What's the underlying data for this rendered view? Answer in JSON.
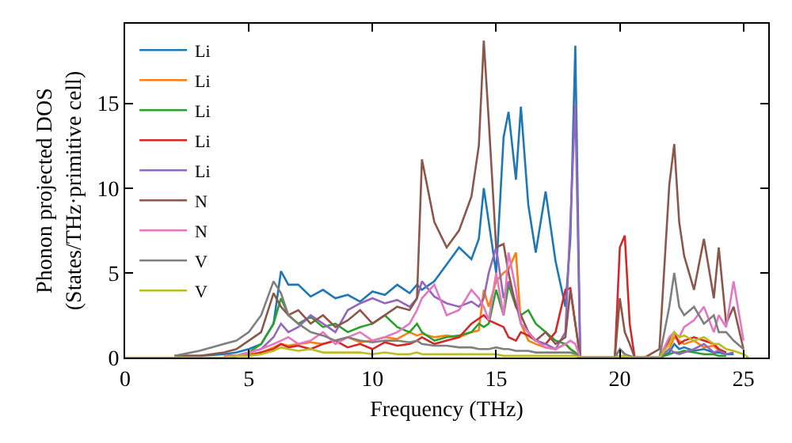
{
  "chart_data": {
    "type": "line",
    "xlabel": "Frequency (THz)",
    "ylabel": "Phonon projected DOS\n(States/THz·primitive cell)",
    "x": [
      0,
      1,
      2,
      3,
      4,
      4.5,
      5,
      5.5,
      6,
      6.3,
      6.6,
      7,
      7.5,
      8,
      8.5,
      9,
      9.5,
      10,
      10.5,
      11,
      11.5,
      11.8,
      12,
      12.5,
      13,
      13.5,
      14,
      14.3,
      14.5,
      14.7,
      15,
      15.3,
      15.5,
      15.8,
      16,
      16.3,
      16.6,
      17,
      17.4,
      17.8,
      18,
      18.2,
      18.4,
      19,
      19.8,
      20,
      20.2,
      20.4,
      20.6,
      21,
      21.6,
      22,
      22.2,
      22.4,
      22.6,
      23,
      23.4,
      23.8,
      24,
      24.3,
      24.6,
      25,
      25.2
    ],
    "series": [
      {
        "name": "Li",
        "color": "#1f77b4",
        "values": [
          null,
          null,
          0.1,
          0.1,
          0.2,
          0.3,
          0.5,
          0.8,
          2,
          5.1,
          4.3,
          4.3,
          3.6,
          4,
          3.5,
          3.7,
          3.3,
          3.9,
          3.7,
          4.3,
          3.8,
          4.3,
          4,
          4.5,
          5.5,
          6.5,
          5.8,
          7,
          10,
          8,
          5,
          13,
          14.5,
          10.5,
          14.8,
          9,
          6.2,
          9.8,
          5.7,
          3,
          7,
          18.4,
          0,
          0,
          0,
          0.5,
          0.2,
          0,
          0,
          0,
          0,
          0.3,
          0.8,
          0.5,
          0.6,
          0.4,
          0.5,
          0.3,
          0.3,
          0.2,
          0.2,
          null,
          null
        ]
      },
      {
        "name": "Li",
        "color": "#ff7f0e",
        "values": [
          null,
          null,
          null,
          null,
          0.1,
          0.1,
          0.2,
          0.3,
          0.6,
          0.8,
          0.7,
          0.8,
          0.9,
          0.8,
          1,
          1.2,
          0.9,
          1,
          1.2,
          1.1,
          1.5,
          1.3,
          1.4,
          1.2,
          1.3,
          1.2,
          1.5,
          1.6,
          4,
          3,
          4.5,
          5,
          5.2,
          6.2,
          2,
          1,
          0.8,
          0.6,
          0.5,
          0.8,
          0.5,
          0.3,
          0,
          0,
          0,
          0,
          0,
          0,
          0,
          0,
          0,
          0.5,
          1.2,
          1,
          0.8,
          1,
          0.6,
          0.7,
          0.4,
          0.3,
          null,
          null,
          null
        ]
      },
      {
        "name": "Li",
        "color": "#2ca02c",
        "values": [
          null,
          null,
          null,
          null,
          0.1,
          0.1,
          0.3,
          0.8,
          2,
          3.5,
          2.5,
          2,
          2.4,
          1.8,
          2,
          1.5,
          1.8,
          2,
          2.5,
          1.8,
          1.5,
          2,
          1.5,
          1,
          1.2,
          1.3,
          1.5,
          2,
          1.8,
          2,
          4,
          2.5,
          4.3,
          3,
          2.5,
          2.8,
          2,
          1.5,
          1,
          0.8,
          0.5,
          0.3,
          0,
          0,
          0,
          0,
          0,
          0,
          0,
          0,
          0,
          0.2,
          0.3,
          0.3,
          0.4,
          0.3,
          0.2,
          0.2,
          0.1,
          0.1,
          null,
          null,
          null
        ]
      },
      {
        "name": "Li",
        "color": "#d62728",
        "values": [
          null,
          null,
          null,
          null,
          0,
          0.1,
          0.1,
          0.3,
          0.5,
          0.8,
          0.6,
          0.7,
          0.5,
          0.8,
          1,
          0.6,
          0.8,
          0.5,
          0.9,
          0.7,
          0.8,
          1,
          1.2,
          0.8,
          1,
          1.2,
          2,
          2.3,
          2.5,
          2.2,
          2,
          1.8,
          1.2,
          1,
          1.5,
          1.3,
          1,
          0.8,
          1.5,
          4,
          4.1,
          2,
          0,
          0,
          0,
          6.5,
          7.2,
          2,
          0,
          0,
          0,
          1,
          1.5,
          0.8,
          1,
          1.2,
          1,
          0.8,
          0.5,
          0.3,
          null,
          null,
          null
        ]
      },
      {
        "name": "Li",
        "color": "#9467bd",
        "values": [
          null,
          null,
          null,
          null,
          0.1,
          0.1,
          0.3,
          0.5,
          1.2,
          2,
          1.5,
          1.8,
          2.5,
          2,
          1.5,
          2.8,
          3.2,
          3.5,
          3.2,
          3.4,
          3,
          3.5,
          4.5,
          3.6,
          3.2,
          3,
          3.3,
          3,
          3.5,
          5,
          6.5,
          3.5,
          4.5,
          3.2,
          2,
          1.5,
          1,
          0.8,
          0.5,
          1.5,
          8,
          15,
          0,
          0,
          0,
          0,
          0,
          0,
          0,
          0,
          0,
          0.5,
          0.3,
          0.2,
          0.3,
          0.5,
          0.8,
          0.3,
          0.4,
          0.2,
          0.3,
          null,
          null
        ]
      },
      {
        "name": "N",
        "color": "#8c564b",
        "values": [
          null,
          null,
          0.1,
          0.1,
          0.3,
          0.5,
          1,
          1.5,
          3.8,
          3,
          2.5,
          2.8,
          2,
          2.5,
          1.8,
          2.2,
          2.8,
          2,
          2.5,
          3,
          2.8,
          3.5,
          11.7,
          8,
          6.5,
          7.5,
          9.5,
          12.5,
          18.7,
          14,
          6.5,
          6.7,
          5,
          3,
          2.5,
          1.5,
          1,
          1.5,
          0.8,
          1.2,
          4,
          2,
          0,
          0,
          0,
          3.5,
          1.5,
          0.8,
          0,
          0,
          0.5,
          10.2,
          12.6,
          8,
          6,
          4,
          7,
          3.5,
          6.5,
          2,
          3,
          0.5,
          null
        ]
      },
      {
        "name": "N",
        "color": "#e377c2",
        "values": [
          null,
          null,
          null,
          null,
          0.1,
          0.1,
          0.3,
          0.5,
          0.8,
          1,
          1.2,
          0.8,
          1,
          1.5,
          0.8,
          1.2,
          1.5,
          1,
          1.2,
          1.5,
          2,
          2.8,
          3.5,
          4.3,
          2.5,
          2.8,
          4,
          3.5,
          3,
          2.2,
          5,
          2.5,
          6.2,
          4,
          2,
          1.5,
          1,
          0.6,
          0.5,
          0.8,
          1,
          0.8,
          0,
          0,
          0,
          0,
          0,
          0,
          0,
          0,
          0,
          1.2,
          1.5,
          1.2,
          1.8,
          2.2,
          3,
          1.5,
          2.5,
          1.8,
          4.5,
          1,
          null
        ]
      },
      {
        "name": "V",
        "color": "#7f7f7f",
        "values": [
          null,
          null,
          0.1,
          0.4,
          0.8,
          1,
          1.5,
          2.5,
          4.5,
          3.8,
          2.5,
          2,
          1.5,
          1.3,
          1,
          1.2,
          1,
          0.9,
          1,
          1,
          0.9,
          1,
          0.8,
          0.7,
          0.7,
          0.6,
          0.6,
          0.5,
          0.5,
          0.5,
          0.6,
          0.5,
          0.5,
          0.4,
          0.4,
          0.4,
          0.3,
          0.3,
          0.3,
          0.3,
          0.3,
          0.2,
          0,
          0,
          0,
          0.5,
          0.2,
          0.1,
          0,
          0,
          0,
          3,
          5,
          3,
          2.5,
          3,
          2,
          2.5,
          1.5,
          1.5,
          1,
          0.5,
          null
        ]
      },
      {
        "name": "V",
        "color": "#bcbd22",
        "values": [
          0,
          0,
          0,
          0,
          0,
          0.1,
          0.1,
          0.2,
          0.4,
          0.6,
          0.5,
          0.4,
          0.5,
          0.3,
          0.3,
          0.3,
          0.3,
          0.2,
          0.3,
          0.2,
          0.2,
          0.3,
          0.2,
          0.2,
          0.2,
          0.2,
          0.2,
          0.2,
          0.2,
          0.2,
          0.2,
          0.1,
          0.1,
          0.1,
          0.1,
          0.1,
          0.1,
          0.1,
          0.1,
          0.1,
          0.1,
          0.1,
          0,
          0,
          0,
          0.1,
          0.1,
          0,
          0,
          0,
          0,
          0.8,
          1.5,
          1.2,
          1.3,
          1,
          1.2,
          0.8,
          0.8,
          0.5,
          0.4,
          0.2,
          0
        ]
      }
    ],
    "xlim": [
      0,
      26
    ],
    "xticks": [
      0,
      5,
      10,
      15,
      20,
      25
    ],
    "ylim": [
      0,
      19.7
    ],
    "yticks": [
      0,
      5,
      10,
      15
    ],
    "grid": false,
    "legend": "top left",
    "marker": "none",
    "line_style": "solid"
  }
}
